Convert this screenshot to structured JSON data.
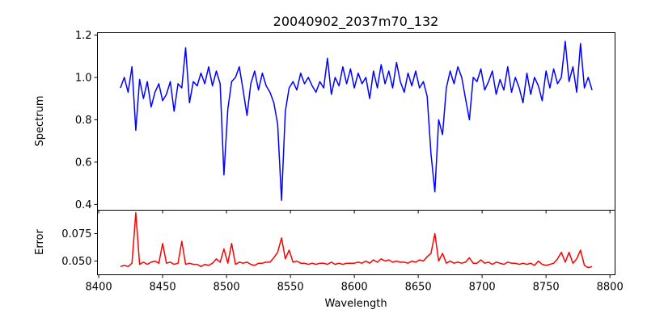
{
  "chart_data": [
    {
      "type": "line",
      "title": "20040902_2037m70_132",
      "xlabel": "",
      "ylabel": "Spectrum",
      "xlim": [
        8399,
        8804
      ],
      "ylim": [
        0.373,
        1.211
      ],
      "xticks": [
        8400,
        8450,
        8500,
        8550,
        8600,
        8650,
        8700,
        8750,
        8800
      ],
      "yticks": [
        0.4,
        0.6,
        0.8,
        1.0,
        1.2
      ],
      "ytick_labels": [
        "0.4",
        "0.6",
        "0.8",
        "1.0",
        "1.2"
      ],
      "grid": false,
      "color": "#0000ff",
      "x_start": 8417,
      "x_step": 3,
      "values": [
        0.95,
        1.0,
        0.93,
        1.05,
        0.75,
        0.99,
        0.9,
        0.98,
        0.86,
        0.93,
        0.97,
        0.89,
        0.92,
        0.98,
        0.84,
        0.97,
        0.95,
        1.14,
        0.88,
        0.98,
        0.96,
        1.02,
        0.97,
        1.05,
        0.96,
        1.03,
        0.97,
        0.54,
        0.85,
        0.98,
        1.0,
        1.05,
        0.94,
        0.82,
        0.97,
        1.03,
        0.94,
        1.02,
        0.96,
        0.93,
        0.88,
        0.78,
        0.42,
        0.84,
        0.95,
        0.98,
        0.94,
        1.02,
        0.97,
        1.0,
        0.96,
        0.93,
        0.98,
        0.95,
        1.09,
        0.92,
        1.0,
        0.96,
        1.05,
        0.97,
        1.04,
        0.95,
        1.02,
        0.97,
        1.0,
        0.9,
        1.03,
        0.95,
        1.06,
        0.97,
        1.03,
        0.95,
        1.07,
        0.98,
        0.93,
        1.02,
        0.96,
        1.03,
        0.95,
        0.98,
        0.91,
        0.64,
        0.46,
        0.8,
        0.73,
        0.95,
        1.03,
        0.97,
        1.05,
        1.0,
        0.9,
        0.8,
        1.0,
        0.98,
        1.04,
        0.94,
        0.98,
        1.03,
        0.92,
        0.99,
        0.94,
        1.05,
        0.93,
        1.0,
        0.95,
        0.88,
        1.02,
        0.92,
        1.0,
        0.96,
        0.89,
        1.03,
        0.95,
        1.04,
        0.97,
        1.0,
        1.17,
        0.98,
        1.05,
        0.93,
        1.16,
        0.95,
        1.0,
        0.94
      ]
    },
    {
      "type": "line",
      "xlabel": "Wavelength",
      "ylabel": "Error",
      "xlim": [
        8399,
        8804
      ],
      "ylim": [
        0.0375,
        0.0963
      ],
      "xticks": [
        8400,
        8450,
        8500,
        8550,
        8600,
        8650,
        8700,
        8750,
        8800
      ],
      "xtick_labels": [
        "8400",
        "8450",
        "8500",
        "8550",
        "8600",
        "8650",
        "8700",
        "8750",
        "8800"
      ],
      "yticks": [
        0.05,
        0.075
      ],
      "ytick_labels": [
        "0.050",
        "0.075"
      ],
      "grid": false,
      "color": "#ff0000",
      "x_start": 8417,
      "x_step": 3,
      "values": [
        0.045,
        0.046,
        0.045,
        0.048,
        0.094,
        0.047,
        0.049,
        0.047,
        0.049,
        0.05,
        0.048,
        0.066,
        0.048,
        0.049,
        0.047,
        0.048,
        0.068,
        0.047,
        0.048,
        0.047,
        0.047,
        0.045,
        0.047,
        0.046,
        0.048,
        0.052,
        0.049,
        0.061,
        0.048,
        0.066,
        0.047,
        0.049,
        0.048,
        0.049,
        0.047,
        0.046,
        0.048,
        0.048,
        0.049,
        0.049,
        0.053,
        0.058,
        0.071,
        0.052,
        0.06,
        0.049,
        0.05,
        0.048,
        0.048,
        0.047,
        0.048,
        0.047,
        0.048,
        0.048,
        0.047,
        0.049,
        0.047,
        0.048,
        0.047,
        0.048,
        0.048,
        0.048,
        0.049,
        0.048,
        0.05,
        0.048,
        0.051,
        0.049,
        0.052,
        0.05,
        0.051,
        0.049,
        0.05,
        0.049,
        0.049,
        0.048,
        0.05,
        0.049,
        0.051,
        0.05,
        0.054,
        0.057,
        0.075,
        0.05,
        0.057,
        0.048,
        0.05,
        0.048,
        0.049,
        0.048,
        0.049,
        0.053,
        0.048,
        0.048,
        0.051,
        0.048,
        0.049,
        0.047,
        0.049,
        0.048,
        0.047,
        0.049,
        0.048,
        0.048,
        0.047,
        0.048,
        0.047,
        0.048,
        0.046,
        0.05,
        0.047,
        0.046,
        0.047,
        0.048,
        0.052,
        0.058,
        0.049,
        0.058,
        0.048,
        0.052,
        0.06,
        0.046,
        0.044,
        0.045
      ]
    }
  ]
}
